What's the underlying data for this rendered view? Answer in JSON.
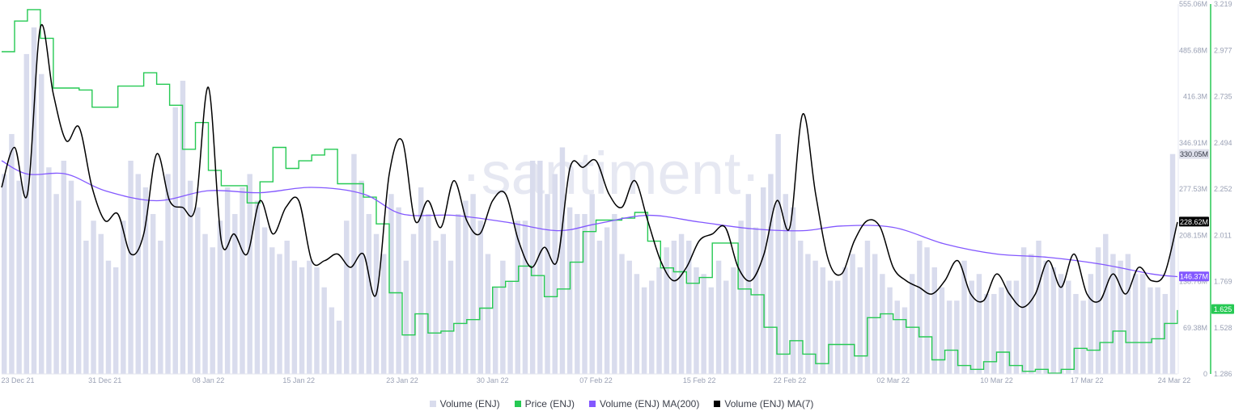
{
  "watermark": "·santiment·",
  "colors": {
    "volume": "#d9dced",
    "price": "#26c953",
    "ma200": "#8358ff",
    "ma7": "#000000",
    "axis_text": "#9aa1b5"
  },
  "chart_data": {
    "type": "bar",
    "x_ticks": [
      "23 Dec 21",
      "31 Dec 21",
      "08 Jan 22",
      "15 Jan 22",
      "23 Jan 22",
      "30 Jan 22",
      "07 Feb 22",
      "15 Feb 22",
      "22 Feb 22",
      "02 Mar 22",
      "10 Mar 22",
      "17 Mar 22",
      "24 Mar 22"
    ],
    "y_volume_ticks": [
      "555.06M",
      "485.68M",
      "416.3M",
      "346.91M",
      "277.53M",
      "208.15M",
      "138.76M",
      "69.38M",
      "0"
    ],
    "y_volume_range": [
      0,
      555.06
    ],
    "y_price_ticks": [
      "3.219",
      "2.977",
      "2.735",
      "2.494",
      "2.252",
      "2.011",
      "1.769",
      "1.528",
      "1.286"
    ],
    "y_price_range": [
      1.286,
      3.219
    ],
    "last_values": {
      "volume": "330.05M",
      "ma7": "228.62M",
      "ma200": "146.37M",
      "price": "1.625"
    },
    "series": [
      {
        "name": "Volume (ENJ)",
        "kind": "bar",
        "unit": "M",
        "values": [
          300,
          360,
          290,
          480,
          520,
          450,
          310,
          270,
          320,
          290,
          260,
          200,
          230,
          210,
          170,
          160,
          230,
          320,
          300,
          280,
          240,
          200,
          300,
          400,
          440,
          290,
          250,
          210,
          190,
          230,
          280,
          240,
          280,
          300,
          260,
          220,
          190,
          180,
          200,
          170,
          160,
          170,
          160,
          130,
          100,
          80,
          230,
          330,
          290,
          240,
          210,
          180,
          270,
          250,
          170,
          210,
          280,
          240,
          200,
          210,
          170,
          240,
          260,
          270,
          230,
          180,
          130,
          170,
          140,
          230,
          230,
          320,
          320,
          270,
          300,
          340,
          250,
          240,
          240,
          270,
          200,
          220,
          240,
          180,
          170,
          150,
          130,
          140,
          160,
          190,
          200,
          210,
          200,
          160,
          150,
          130,
          170,
          140,
          160,
          230,
          270,
          220,
          280,
          300,
          360,
          270,
          250,
          200,
          180,
          170,
          160,
          140,
          140,
          160,
          180,
          160,
          200,
          180,
          150,
          130,
          110,
          100,
          150,
          200,
          190,
          160,
          130,
          110,
          110,
          170,
          140,
          150,
          120,
          120,
          130,
          140,
          140,
          190,
          180,
          200,
          170,
          160,
          150,
          140,
          120,
          110,
          150,
          190,
          210,
          180,
          170,
          180,
          150,
          150,
          130,
          130,
          120,
          330
        ],
        "daily_samples": "approx 2 per day, 23 Dec 21 - 24 Mar 22"
      },
      {
        "name": "Price (ENJ)",
        "kind": "step",
        "points": [
          [
            "23 Dec 21",
            2.97
          ],
          [
            "24 Dec 21",
            3.13
          ],
          [
            "25 Dec 21",
            3.19
          ],
          [
            "26 Dec 21",
            3.04
          ],
          [
            "27 Dec 21",
            2.78
          ],
          [
            "29 Dec 21",
            2.77
          ],
          [
            "30 Dec 21",
            2.68
          ],
          [
            "01 Jan 22",
            2.79
          ],
          [
            "03 Jan 22",
            2.86
          ],
          [
            "04 Jan 22",
            2.8
          ],
          [
            "05 Jan 22",
            2.69
          ],
          [
            "06 Jan 22",
            2.46
          ],
          [
            "07 Jan 22",
            2.6
          ],
          [
            "08 Jan 22",
            2.35
          ],
          [
            "09 Jan 22",
            2.27
          ],
          [
            "11 Jan 22",
            2.18
          ],
          [
            "12 Jan 22",
            2.29
          ],
          [
            "13 Jan 22",
            2.47
          ],
          [
            "14 Jan 22",
            2.36
          ],
          [
            "15 Jan 22",
            2.4
          ],
          [
            "16 Jan 22",
            2.43
          ],
          [
            "17 Jan 22",
            2.46
          ],
          [
            "18 Jan 22",
            2.28
          ],
          [
            "20 Jan 22",
            2.21
          ],
          [
            "21 Jan 22",
            2.07
          ],
          [
            "22 Jan 22",
            1.71
          ],
          [
            "23 Jan 22",
            1.49
          ],
          [
            "24 Jan 22",
            1.6
          ],
          [
            "25 Jan 22",
            1.5
          ],
          [
            "26 Jan 22",
            1.51
          ],
          [
            "27 Jan 22",
            1.55
          ],
          [
            "28 Jan 22",
            1.57
          ],
          [
            "29 Jan 22",
            1.63
          ],
          [
            "30 Jan 22",
            1.74
          ],
          [
            "31 Jan 22",
            1.77
          ],
          [
            "01 Feb 22",
            1.85
          ],
          [
            "02 Feb 22",
            1.8
          ],
          [
            "03 Feb 22",
            1.69
          ],
          [
            "04 Feb 22",
            1.73
          ],
          [
            "05 Feb 22",
            1.87
          ],
          [
            "06 Feb 22",
            2.03
          ],
          [
            "07 Feb 22",
            2.09
          ],
          [
            "08 Feb 22",
            2.09
          ],
          [
            "09 Feb 22",
            2.1
          ],
          [
            "10 Feb 22",
            2.13
          ],
          [
            "11 Feb 22",
            1.98
          ],
          [
            "12 Feb 22",
            1.84
          ],
          [
            "13 Feb 22",
            1.82
          ],
          [
            "14 Feb 22",
            1.76
          ],
          [
            "15 Feb 22",
            1.79
          ],
          [
            "16 Feb 22",
            1.97
          ],
          [
            "17 Feb 22",
            1.97
          ],
          [
            "18 Feb 22",
            1.73
          ],
          [
            "19 Feb 22",
            1.7
          ],
          [
            "20 Feb 22",
            1.53
          ],
          [
            "21 Feb 22",
            1.39
          ],
          [
            "22 Feb 22",
            1.46
          ],
          [
            "23 Feb 22",
            1.39
          ],
          [
            "24 Feb 22",
            1.34
          ],
          [
            "25 Feb 22",
            1.44
          ],
          [
            "26 Feb 22",
            1.44
          ],
          [
            "27 Feb 22",
            1.38
          ],
          [
            "28 Feb 22",
            1.58
          ],
          [
            "01 Mar 22",
            1.6
          ],
          [
            "02 Mar 22",
            1.57
          ],
          [
            "03 Mar 22",
            1.53
          ],
          [
            "04 Mar 22",
            1.48
          ],
          [
            "05 Mar 22",
            1.36
          ],
          [
            "06 Mar 22",
            1.41
          ],
          [
            "07 Mar 22",
            1.33
          ],
          [
            "08 Mar 22",
            1.31
          ],
          [
            "09 Mar 22",
            1.35
          ],
          [
            "10 Mar 22",
            1.4
          ],
          [
            "11 Mar 22",
            1.33
          ],
          [
            "12 Mar 22",
            1.3
          ],
          [
            "13 Mar 22",
            1.31
          ],
          [
            "14 Mar 22",
            1.29
          ],
          [
            "15 Mar 22",
            1.31
          ],
          [
            "16 Mar 22",
            1.42
          ],
          [
            "17 Mar 22",
            1.41
          ],
          [
            "18 Mar 22",
            1.45
          ],
          [
            "19 Mar 22",
            1.51
          ],
          [
            "20 Mar 22",
            1.45
          ],
          [
            "21 Mar 22",
            1.45
          ],
          [
            "22 Mar 22",
            1.47
          ],
          [
            "23 Mar 22",
            1.55
          ],
          [
            "24 Mar 22",
            1.62
          ]
        ]
      },
      {
        "name": "Volume (ENJ) MA(200)",
        "kind": "line",
        "points": [
          [
            "23 Dec 21",
            320
          ],
          [
            "25 Dec 21",
            300
          ],
          [
            "28 Dec 21",
            300
          ],
          [
            "31 Dec 21",
            275
          ],
          [
            "04 Jan 22",
            260
          ],
          [
            "08 Jan 22",
            275
          ],
          [
            "12 Jan 22",
            272
          ],
          [
            "16 Jan 22",
            280
          ],
          [
            "20 Jan 22",
            270
          ],
          [
            "23 Jan 22",
            240
          ],
          [
            "27 Jan 22",
            238
          ],
          [
            "31 Jan 22",
            228
          ],
          [
            "04 Feb 22",
            215
          ],
          [
            "07 Feb 22",
            225
          ],
          [
            "11 Feb 22",
            238
          ],
          [
            "15 Feb 22",
            228
          ],
          [
            "19 Feb 22",
            218
          ],
          [
            "23 Feb 22",
            215
          ],
          [
            "26 Feb 22",
            222
          ],
          [
            "02 Mar 22",
            220
          ],
          [
            "06 Mar 22",
            195
          ],
          [
            "10 Mar 22",
            180
          ],
          [
            "14 Mar 22",
            175
          ],
          [
            "18 Mar 22",
            165
          ],
          [
            "22 Mar 22",
            150
          ],
          [
            "24 Mar 22",
            146
          ]
        ]
      },
      {
        "name": "Volume (ENJ) MA(7)",
        "kind": "line",
        "points": [
          [
            "23 Dec 21",
            280
          ],
          [
            "24 Dec 21",
            340
          ],
          [
            "25 Dec 21",
            270
          ],
          [
            "26 Dec 21",
            520
          ],
          [
            "27 Dec 21",
            420
          ],
          [
            "28 Dec 21",
            350
          ],
          [
            "29 Dec 21",
            370
          ],
          [
            "30 Dec 21",
            280
          ],
          [
            "31 Dec 21",
            230
          ],
          [
            "01 Jan 22",
            240
          ],
          [
            "02 Jan 22",
            180
          ],
          [
            "03 Jan 22",
            210
          ],
          [
            "04 Jan 22",
            330
          ],
          [
            "05 Jan 22",
            260
          ],
          [
            "06 Jan 22",
            250
          ],
          [
            "07 Jan 22",
            250
          ],
          [
            "08 Jan 22",
            430
          ],
          [
            "09 Jan 22",
            200
          ],
          [
            "10 Jan 22",
            210
          ],
          [
            "11 Jan 22",
            180
          ],
          [
            "12 Jan 22",
            260
          ],
          [
            "13 Jan 22",
            210
          ],
          [
            "14 Jan 22",
            250
          ],
          [
            "15 Jan 22",
            260
          ],
          [
            "16 Jan 22",
            170
          ],
          [
            "17 Jan 22",
            170
          ],
          [
            "18 Jan 22",
            180
          ],
          [
            "19 Jan 22",
            160
          ],
          [
            "20 Jan 22",
            180
          ],
          [
            "21 Jan 22",
            120
          ],
          [
            "22 Jan 22",
            300
          ],
          [
            "23 Jan 22",
            350
          ],
          [
            "24 Jan 22",
            230
          ],
          [
            "25 Jan 22",
            260
          ],
          [
            "26 Jan 22",
            220
          ],
          [
            "27 Jan 22",
            290
          ],
          [
            "28 Jan 22",
            230
          ],
          [
            "29 Jan 22",
            210
          ],
          [
            "30 Jan 22",
            260
          ],
          [
            "31 Jan 22",
            270
          ],
          [
            "01 Feb 22",
            200
          ],
          [
            "02 Feb 22",
            160
          ],
          [
            "03 Feb 22",
            190
          ],
          [
            "04 Feb 22",
            170
          ],
          [
            "05 Feb 22",
            310
          ],
          [
            "06 Feb 22",
            310
          ],
          [
            "07 Feb 22",
            320
          ],
          [
            "08 Feb 22",
            270
          ],
          [
            "09 Feb 22",
            250
          ],
          [
            "10 Feb 22",
            290
          ],
          [
            "11 Feb 22",
            230
          ],
          [
            "12 Feb 22",
            170
          ],
          [
            "13 Feb 22",
            140
          ],
          [
            "14 Feb 22",
            160
          ],
          [
            "15 Feb 22",
            200
          ],
          [
            "16 Feb 22",
            210
          ],
          [
            "17 Feb 22",
            220
          ],
          [
            "18 Feb 22",
            160
          ],
          [
            "19 Feb 22",
            140
          ],
          [
            "20 Feb 22",
            180
          ],
          [
            "21 Feb 22",
            260
          ],
          [
            "22 Feb 22",
            220
          ],
          [
            "23 Feb 22",
            390
          ],
          [
            "24 Feb 22",
            270
          ],
          [
            "25 Feb 22",
            170
          ],
          [
            "26 Feb 22",
            150
          ],
          [
            "27 Feb 22",
            200
          ],
          [
            "28 Feb 22",
            230
          ],
          [
            "01 Mar 22",
            220
          ],
          [
            "02 Mar 22",
            160
          ],
          [
            "03 Mar 22",
            140
          ],
          [
            "04 Mar 22",
            130
          ],
          [
            "05 Mar 22",
            120
          ],
          [
            "06 Mar 22",
            140
          ],
          [
            "07 Mar 22",
            170
          ],
          [
            "08 Mar 22",
            120
          ],
          [
            "09 Mar 22",
            110
          ],
          [
            "10 Mar 22",
            150
          ],
          [
            "11 Mar 22",
            120
          ],
          [
            "12 Mar 22",
            100
          ],
          [
            "13 Mar 22",
            120
          ],
          [
            "14 Mar 22",
            170
          ],
          [
            "15 Mar 22",
            130
          ],
          [
            "16 Mar 22",
            180
          ],
          [
            "17 Mar 22",
            120
          ],
          [
            "18 Mar 22",
            110
          ],
          [
            "19 Mar 22",
            150
          ],
          [
            "20 Mar 22",
            120
          ],
          [
            "21 Mar 22",
            160
          ],
          [
            "22 Mar 22",
            140
          ],
          [
            "23 Mar 22",
            150
          ],
          [
            "24 Mar 22",
            228
          ]
        ]
      }
    ]
  },
  "legend": [
    {
      "label": "Volume (ENJ)",
      "color": "#d9dced"
    },
    {
      "label": "Price (ENJ)",
      "color": "#26c953"
    },
    {
      "label": "Volume (ENJ) MA(200)",
      "color": "#8358ff"
    },
    {
      "label": "Volume (ENJ) MA(7)",
      "color": "#000000"
    }
  ]
}
